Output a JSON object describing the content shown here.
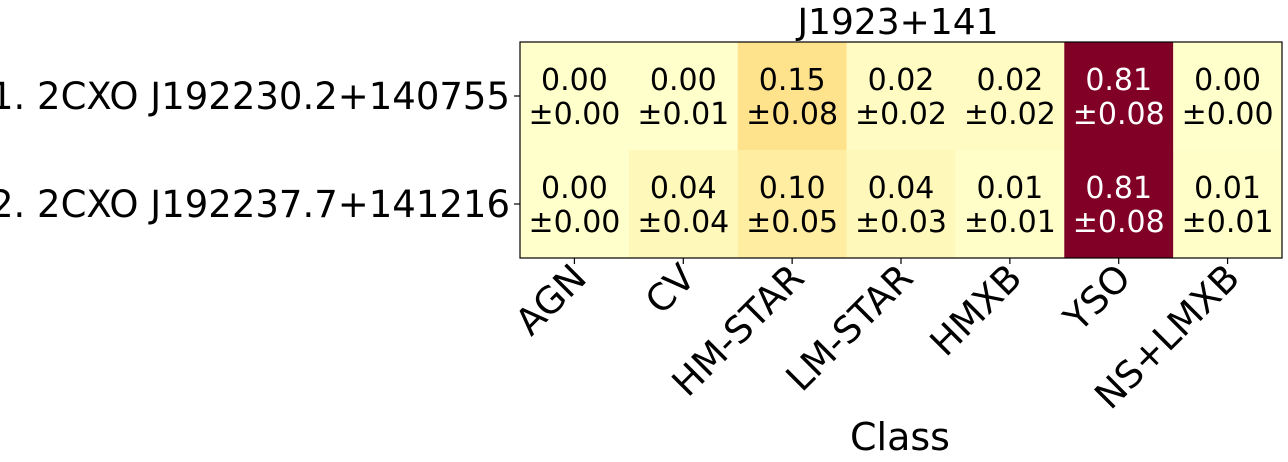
{
  "chart_data": {
    "type": "heatmap",
    "title": "J1923+141",
    "xlabel": "Class",
    "ylabel": "",
    "columns": [
      "AGN",
      "CV",
      "HM-STAR",
      "LM-STAR",
      "HMXB",
      "YSO",
      "NS+LMXB"
    ],
    "rows": [
      "1. 2CXO J192230.2+140755",
      "2. 2CXO J192237.7+141216"
    ],
    "values": [
      [
        0.0,
        0.0,
        0.15,
        0.02,
        0.02,
        0.81,
        0.0
      ],
      [
        0.0,
        0.04,
        0.1,
        0.04,
        0.01,
        0.81,
        0.01
      ]
    ],
    "errors": [
      [
        0.0,
        0.01,
        0.08,
        0.02,
        0.02,
        0.08,
        0.0
      ],
      [
        0.0,
        0.04,
        0.05,
        0.03,
        0.01,
        0.08,
        0.01
      ]
    ],
    "value_labels": [
      [
        "0.00",
        "0.00",
        "0.15",
        "0.02",
        "0.02",
        "0.81",
        "0.00"
      ],
      [
        "0.00",
        "0.04",
        "0.10",
        "0.04",
        "0.01",
        "0.81",
        "0.01"
      ]
    ],
    "error_labels": [
      [
        "±0.00",
        "±0.01",
        "±0.08",
        "±0.02",
        "±0.02",
        "±0.08",
        "±0.00"
      ],
      [
        "±0.00",
        "±0.04",
        "±0.05",
        "±0.03",
        "±0.01",
        "±0.08",
        "±0.01"
      ]
    ],
    "colormap": "YlOrRd",
    "color_range": [
      0,
      0.81
    ]
  }
}
